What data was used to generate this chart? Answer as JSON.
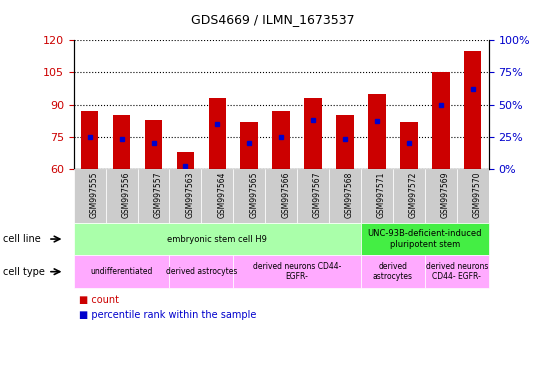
{
  "title": "GDS4669 / ILMN_1673537",
  "samples": [
    "GSM997555",
    "GSM997556",
    "GSM997557",
    "GSM997563",
    "GSM997564",
    "GSM997565",
    "GSM997566",
    "GSM997567",
    "GSM997568",
    "GSM997571",
    "GSM997572",
    "GSM997569",
    "GSM997570"
  ],
  "bar_values": [
    87,
    85,
    83,
    68,
    93,
    82,
    87,
    93,
    85,
    95,
    82,
    105,
    115
  ],
  "percentile_values": [
    25,
    23,
    20,
    2,
    35,
    20,
    25,
    38,
    23,
    37,
    20,
    50,
    62
  ],
  "ylim_left": [
    60,
    120
  ],
  "ylim_right": [
    0,
    100
  ],
  "yticks_left": [
    60,
    75,
    90,
    105,
    120
  ],
  "yticks_right": [
    0,
    25,
    50,
    75,
    100
  ],
  "bar_color": "#cc0000",
  "dot_color": "#0000cc",
  "bar_bottom": 60,
  "cell_line_groups": [
    {
      "label": "embryonic stem cell H9",
      "start": 0,
      "end": 9,
      "color": "#aaffaa"
    },
    {
      "label": "UNC-93B-deficient-induced\npluripotent stem",
      "start": 9,
      "end": 13,
      "color": "#44ee44"
    }
  ],
  "cell_type_groups": [
    {
      "label": "undifferentiated",
      "start": 0,
      "end": 3,
      "color": "#ffaaff"
    },
    {
      "label": "derived astrocytes",
      "start": 3,
      "end": 5,
      "color": "#ffaaff"
    },
    {
      "label": "derived neurons CD44-\nEGFR-",
      "start": 5,
      "end": 9,
      "color": "#ffaaff"
    },
    {
      "label": "derived\nastrocytes",
      "start": 9,
      "end": 11,
      "color": "#ffaaff"
    },
    {
      "label": "derived neurons\nCD44- EGFR-",
      "start": 11,
      "end": 13,
      "color": "#ffaaff"
    }
  ],
  "legend_items": [
    {
      "label": "count",
      "color": "#cc0000"
    },
    {
      "label": "percentile rank within the sample",
      "color": "#0000cc"
    }
  ],
  "tick_label_color_left": "#cc0000",
  "tick_label_color_right": "#0000cc",
  "tick_bg_color": "#cccccc"
}
